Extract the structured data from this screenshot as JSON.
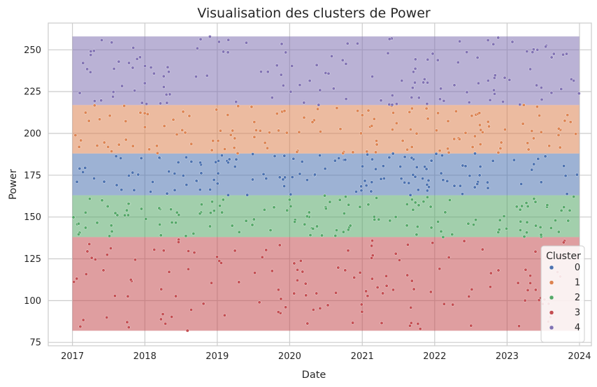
{
  "chart_data": {
    "type": "scatter",
    "title": "Visualisation des clusters de Power",
    "xlabel": "Date",
    "ylabel": "Power",
    "x_range": [
      "2016-09-01",
      "2024-03-01"
    ],
    "ylim": [
      73,
      266
    ],
    "x_ticks": [
      "2017",
      "2018",
      "2019",
      "2020",
      "2021",
      "2022",
      "2023",
      "2024"
    ],
    "y_ticks": [
      75,
      100,
      125,
      150,
      175,
      200,
      225,
      250
    ],
    "grid": true,
    "legend": {
      "title": "Cluster",
      "placement": "bottom-right"
    },
    "series": [
      {
        "name": "0",
        "color": "#4c72b0",
        "y_band": [
          163,
          188
        ],
        "data_span": [
          "2017-01-01",
          "2023-12-31"
        ]
      },
      {
        "name": "1",
        "color": "#dd8452",
        "y_band": [
          188,
          217
        ],
        "data_span": [
          "2017-01-01",
          "2023-12-31"
        ]
      },
      {
        "name": "2",
        "color": "#55a868",
        "y_band": [
          138,
          163
        ],
        "data_span": [
          "2017-01-01",
          "2023-12-31"
        ]
      },
      {
        "name": "3",
        "color": "#c44e52",
        "y_band": [
          82,
          138
        ],
        "data_span": [
          "2017-01-01",
          "2023-12-31"
        ]
      },
      {
        "name": "4",
        "color": "#8172b3",
        "y_band": [
          217,
          258
        ],
        "data_span": [
          "2017-01-01",
          "2023-12-31"
        ]
      }
    ]
  }
}
